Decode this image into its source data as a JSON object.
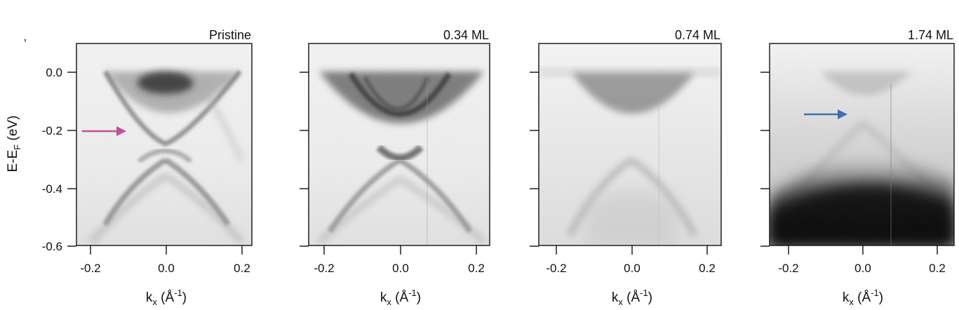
{
  "figure": {
    "ylabel": {
      "main": "E-E",
      "sub": "F",
      "unit": " (eV)"
    },
    "xlabel": {
      "main": "k",
      "sub": "x",
      "unit_pre": " (Å",
      "sup": "-1",
      "unit_post": ")"
    },
    "y_ticks": [
      "0.0",
      "-0.2",
      "-0.4",
      "-0.6"
    ],
    "x_ticks": [
      "-0.2",
      "0.0",
      "0.2"
    ],
    "colors": {
      "arrow_magenta": "#c0509c",
      "arrow_blue": "#3f6fae"
    }
  },
  "chart_data": [
    {
      "type": "heatmap",
      "title": "Pristine",
      "xlim": [
        -0.25,
        0.25
      ],
      "ylim": [
        -0.6,
        0.05
      ],
      "dirac_point_eV": -0.28,
      "arrow": {
        "color": "magenta",
        "points_to_eV": -0.2
      }
    },
    {
      "type": "heatmap",
      "title": "0.34 ML",
      "xlim": [
        -0.25,
        0.25
      ],
      "ylim": [
        -0.6,
        0.05
      ],
      "dirac_point_eV": -0.29
    },
    {
      "type": "heatmap",
      "title": "0.74 ML",
      "xlim": [
        -0.25,
        0.25
      ],
      "ylim": [
        -0.6,
        0.05
      ],
      "dirac_point_eV": -0.24
    },
    {
      "type": "heatmap",
      "title": "1.74 ML",
      "xlim": [
        -0.25,
        0.25
      ],
      "ylim": [
        -0.6,
        0.05
      ],
      "dirac_point_eV": -0.17,
      "arrow": {
        "color": "blue",
        "points_to_eV": -0.14
      }
    }
  ]
}
